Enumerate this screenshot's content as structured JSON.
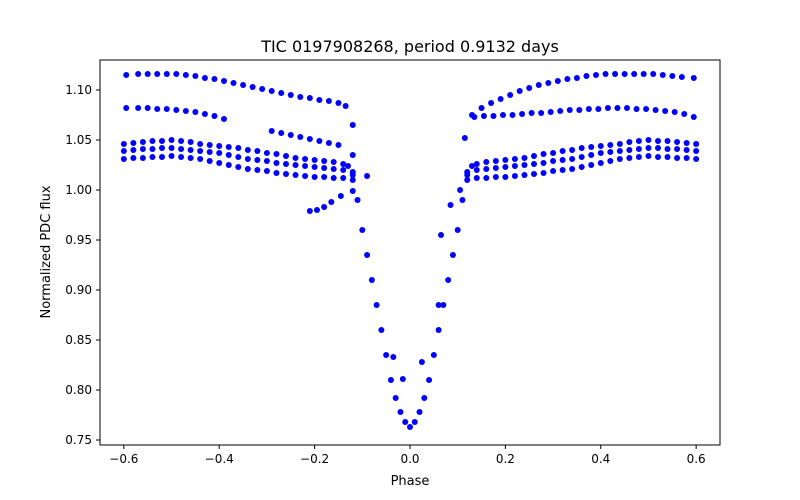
{
  "chart_data": {
    "type": "scatter",
    "title": "TIC 0197908268, period 0.9132 days",
    "xlabel": "Phase",
    "ylabel": "Normalized PDC flux",
    "xlim": [
      -0.65,
      0.65
    ],
    "ylim": [
      0.745,
      1.13
    ],
    "xticks": [
      -0.6,
      -0.4,
      -0.2,
      0.0,
      0.2,
      0.4,
      0.6
    ],
    "xtick_labels": [
      "−0.6",
      "−0.4",
      "−0.2",
      "0.0",
      "0.2",
      "0.4",
      "0.6"
    ],
    "yticks": [
      0.75,
      0.8,
      0.85,
      0.9,
      0.95,
      1.0,
      1.05,
      1.1
    ],
    "ytick_labels": [
      "0.75",
      "0.80",
      "0.85",
      "0.90",
      "0.95",
      "1.00",
      "1.05",
      "1.10"
    ],
    "grid": false,
    "legend": "none",
    "marker_color": "#0000ff",
    "series": [
      {
        "x": [
          -0.6,
          -0.58,
          -0.56,
          -0.54,
          -0.52,
          -0.5,
          -0.48,
          -0.46,
          -0.44,
          -0.42,
          -0.4,
          -0.38,
          -0.36,
          -0.34,
          -0.32,
          -0.3,
          -0.28,
          -0.26,
          -0.24,
          -0.22,
          -0.2,
          -0.18,
          -0.16,
          -0.14,
          -0.13,
          -0.12,
          -0.11,
          -0.1,
          -0.09,
          -0.08,
          -0.07,
          -0.06,
          -0.05,
          -0.04,
          -0.03,
          -0.02,
          -0.01,
          0.0,
          0.01,
          0.02,
          0.03,
          0.04,
          0.05,
          0.06,
          0.07,
          0.08,
          0.09,
          0.1,
          0.11,
          0.12,
          0.13,
          0.14,
          0.16,
          0.18,
          0.2,
          0.22,
          0.24,
          0.26,
          0.28,
          0.3,
          0.32,
          0.34,
          0.36,
          0.38,
          0.4,
          0.42,
          0.44,
          0.46,
          0.48,
          0.5,
          0.52,
          0.54,
          0.56,
          0.58,
          0.6
        ],
        "y": [
          1.046,
          1.047,
          1.048,
          1.049,
          1.049,
          1.05,
          1.049,
          1.048,
          1.046,
          1.045,
          1.044,
          1.043,
          1.042,
          1.04,
          1.039,
          1.037,
          1.036,
          1.034,
          1.032,
          1.031,
          1.03,
          1.029,
          1.028,
          1.026,
          1.024,
          1.015,
          0.99,
          0.96,
          0.935,
          0.91,
          0.885,
          0.86,
          0.835,
          0.81,
          0.792,
          0.778,
          0.768,
          0.763,
          0.768,
          0.778,
          0.792,
          0.81,
          0.835,
          0.86,
          0.885,
          0.91,
          0.935,
          0.96,
          0.99,
          1.015,
          1.024,
          1.026,
          1.028,
          1.029,
          1.03,
          1.031,
          1.032,
          1.034,
          1.036,
          1.037,
          1.039,
          1.04,
          1.042,
          1.043,
          1.044,
          1.045,
          1.046,
          1.048,
          1.049,
          1.05,
          1.049,
          1.049,
          1.048,
          1.047,
          1.046
        ]
      },
      {
        "x": [
          -0.6,
          -0.58,
          -0.56,
          -0.54,
          -0.52,
          -0.5,
          -0.48,
          -0.46,
          -0.44,
          -0.42,
          -0.4,
          -0.38,
          -0.36,
          -0.34,
          -0.32,
          -0.3,
          -0.28,
          -0.26,
          -0.24,
          -0.22,
          -0.2,
          -0.18,
          -0.16,
          -0.14,
          -0.12,
          0.12,
          0.14,
          0.16,
          0.18,
          0.2,
          0.22,
          0.24,
          0.26,
          0.28,
          0.3,
          0.32,
          0.34,
          0.36,
          0.38,
          0.4,
          0.42,
          0.44,
          0.46,
          0.48,
          0.5,
          0.52,
          0.54,
          0.56,
          0.58,
          0.6
        ],
        "y": [
          1.031,
          1.032,
          1.032,
          1.033,
          1.033,
          1.034,
          1.033,
          1.032,
          1.031,
          1.029,
          1.027,
          1.025,
          1.023,
          1.021,
          1.02,
          1.019,
          1.017,
          1.016,
          1.015,
          1.014,
          1.013,
          1.013,
          1.012,
          1.012,
          1.01,
          1.01,
          1.012,
          1.012,
          1.013,
          1.013,
          1.014,
          1.015,
          1.016,
          1.017,
          1.019,
          1.02,
          1.021,
          1.023,
          1.025,
          1.027,
          1.029,
          1.031,
          1.032,
          1.033,
          1.034,
          1.033,
          1.033,
          1.032,
          1.032,
          1.031
        ]
      },
      {
        "x": [
          -0.6,
          -0.58,
          -0.56,
          -0.54,
          -0.52,
          -0.5,
          -0.48,
          -0.46,
          -0.44,
          -0.42,
          -0.4,
          -0.38,
          -0.36,
          -0.34,
          -0.32,
          -0.3,
          -0.28,
          -0.26,
          -0.24,
          -0.22,
          -0.2,
          -0.18,
          -0.16,
          -0.14,
          -0.12,
          0.12,
          0.14,
          0.16,
          0.18,
          0.2,
          0.22,
          0.24,
          0.26,
          0.28,
          0.3,
          0.32,
          0.34,
          0.36,
          0.38,
          0.4,
          0.42,
          0.44,
          0.46,
          0.48,
          0.5,
          0.52,
          0.54,
          0.56,
          0.58,
          0.6
        ],
        "y": [
          1.039,
          1.04,
          1.041,
          1.041,
          1.042,
          1.042,
          1.041,
          1.04,
          1.039,
          1.038,
          1.037,
          1.035,
          1.033,
          1.031,
          1.03,
          1.029,
          1.027,
          1.026,
          1.025,
          1.024,
          1.023,
          1.022,
          1.021,
          1.02,
          1.018,
          1.018,
          1.02,
          1.021,
          1.022,
          1.023,
          1.024,
          1.025,
          1.026,
          1.027,
          1.029,
          1.03,
          1.031,
          1.033,
          1.035,
          1.037,
          1.038,
          1.039,
          1.04,
          1.041,
          1.042,
          1.042,
          1.041,
          1.041,
          1.04,
          1.039
        ]
      },
      {
        "x": [
          -0.595,
          -0.57,
          -0.55,
          -0.53,
          -0.51,
          -0.49,
          -0.47,
          -0.45,
          -0.43,
          -0.41,
          -0.39,
          -0.37,
          -0.35,
          -0.33,
          -0.31,
          -0.29,
          -0.27,
          -0.25,
          -0.23,
          -0.21,
          -0.19,
          -0.17,
          -0.15,
          -0.135
        ],
        "y": [
          1.115,
          1.116,
          1.116,
          1.116,
          1.116,
          1.116,
          1.115,
          1.114,
          1.112,
          1.111,
          1.109,
          1.107,
          1.105,
          1.103,
          1.101,
          1.099,
          1.097,
          1.095,
          1.093,
          1.092,
          1.09,
          1.089,
          1.087,
          1.084
        ]
      },
      {
        "x": [
          0.13,
          0.15,
          0.17,
          0.19,
          0.21,
          0.23,
          0.25,
          0.27,
          0.29,
          0.31,
          0.33,
          0.35,
          0.37,
          0.39,
          0.41,
          0.43,
          0.45,
          0.47,
          0.49,
          0.51,
          0.53,
          0.55,
          0.57,
          0.595
        ],
        "y": [
          1.075,
          1.082,
          1.087,
          1.091,
          1.095,
          1.099,
          1.102,
          1.105,
          1.107,
          1.109,
          1.111,
          1.112,
          1.114,
          1.115,
          1.116,
          1.116,
          1.116,
          1.116,
          1.116,
          1.116,
          1.115,
          1.114,
          1.113,
          1.112
        ]
      },
      {
        "x": [
          -0.595,
          -0.57,
          -0.55,
          -0.53,
          -0.51,
          -0.49,
          -0.47,
          -0.45,
          -0.43,
          -0.41,
          -0.39
        ],
        "y": [
          1.082,
          1.082,
          1.082,
          1.081,
          1.081,
          1.08,
          1.079,
          1.078,
          1.076,
          1.074,
          1.071
        ]
      },
      {
        "x": [
          0.135,
          0.155,
          0.175,
          0.195,
          0.215,
          0.235,
          0.255,
          0.275,
          0.295,
          0.315,
          0.335,
          0.355,
          0.375,
          0.395,
          0.415,
          0.435,
          0.455,
          0.475,
          0.495,
          0.515,
          0.535,
          0.555,
          0.575,
          0.595
        ],
        "y": [
          1.073,
          1.074,
          1.074,
          1.075,
          1.075,
          1.076,
          1.077,
          1.077,
          1.078,
          1.079,
          1.08,
          1.08,
          1.081,
          1.081,
          1.082,
          1.082,
          1.082,
          1.081,
          1.081,
          1.08,
          1.079,
          1.078,
          1.076,
          1.073
        ]
      },
      {
        "x": [
          -0.29,
          -0.27,
          -0.25,
          -0.23,
          -0.21,
          -0.19,
          -0.17,
          -0.15,
          -0.12,
          -0.12,
          -0.21,
          -0.195,
          -0.18,
          -0.165,
          -0.145,
          -0.12,
          -0.09,
          -0.035,
          -0.015,
          0.025,
          0.06,
          0.065,
          0.085,
          0.105,
          0.115
        ],
        "y": [
          1.059,
          1.057,
          1.055,
          1.053,
          1.051,
          1.049,
          1.047,
          1.045,
          1.065,
          1.035,
          0.979,
          0.98,
          0.983,
          0.988,
          0.994,
          0.999,
          1.014,
          0.833,
          0.811,
          0.828,
          0.885,
          0.955,
          0.985,
          1.0,
          1.052
        ]
      }
    ]
  }
}
